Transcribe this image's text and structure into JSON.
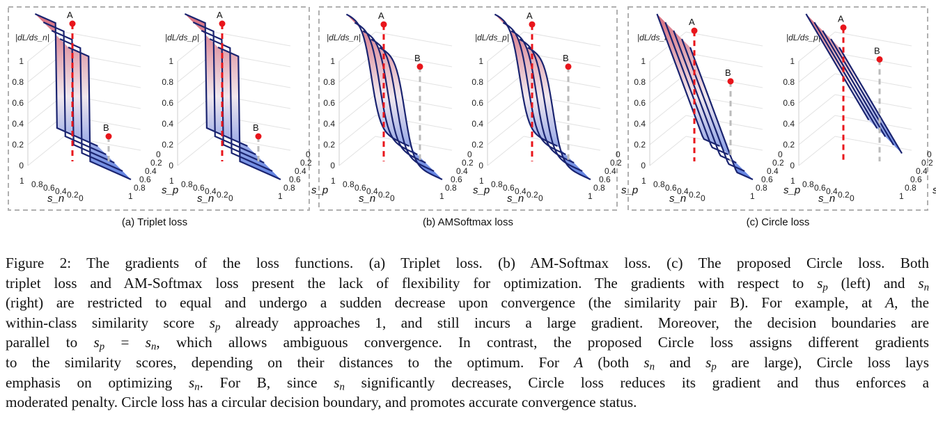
{
  "panels": [
    {
      "id": "triplet",
      "label": "(a) Triplet loss",
      "subplots": [
        {
          "ylabel": "|dL/ds_n|",
          "type": "step"
        },
        {
          "ylabel": "|dL/ds_p|",
          "type": "step"
        }
      ]
    },
    {
      "id": "amsoftmax",
      "label": "(b) AMSoftmax loss",
      "subplots": [
        {
          "ylabel": "|dL/ds_n|",
          "type": "smooth"
        },
        {
          "ylabel": "|dL/ds_p|",
          "type": "smooth"
        }
      ]
    },
    {
      "id": "circle",
      "label": "(c) Circle loss",
      "subplots": [
        {
          "ylabel": "|dL/ds_n|",
          "type": "ramp_n"
        },
        {
          "ylabel": "|dL/ds_p|",
          "type": "ramp_p"
        }
      ]
    }
  ],
  "axes": {
    "z_ticks": [
      "0",
      "0.2",
      "0.4",
      "0.6",
      "0.8",
      "1"
    ],
    "sn_ticks": [
      "1",
      "0.8",
      "0.6",
      "0.4",
      "0.2",
      "0"
    ],
    "sp_ticks": [
      "0",
      "0.2",
      "0.4",
      "0.6",
      "0.8",
      "1"
    ],
    "sn_label": "s_n",
    "sp_label": "s_p"
  },
  "points": {
    "a": "A",
    "b": "B"
  },
  "colors": {
    "high": "#d9707f",
    "mid": "#f2e6ea",
    "low": "#5e7fe0",
    "line": "#1a2470",
    "marker": "#e8151b",
    "frame": "#b0b0b0"
  },
  "caption": {
    "lead": "Figure 2:",
    "text": "The gradients of the loss functions. (a) Triplet loss. (b) AM-Softmax loss. (c) The proposed Circle loss. Both triplet loss and AM-Softmax loss present the lack of flexibility for optimization. The gradients with respect to s_p (left) and s_n (right) are restricted to equal and undergo a sudden decrease upon convergence (the similarity pair B). For example, at A, the within-class similarity score s_p already approaches 1, and still incurs a large gradient. Moreover, the decision boundaries are parallel to s_p = s_n, which allows ambiguous convergence. In contrast, the proposed Circle loss assigns different gradients to the similarity scores, depending on their distances to the optimum. For A (both s_n and s_p are large), Circle loss lays emphasis on optimizing s_n. For B, since s_n significantly decreases, Circle loss reduces its gradient and thus enforces a moderated penalty. Circle loss has a circular decision boundary, and promotes accurate convergence status."
  }
}
